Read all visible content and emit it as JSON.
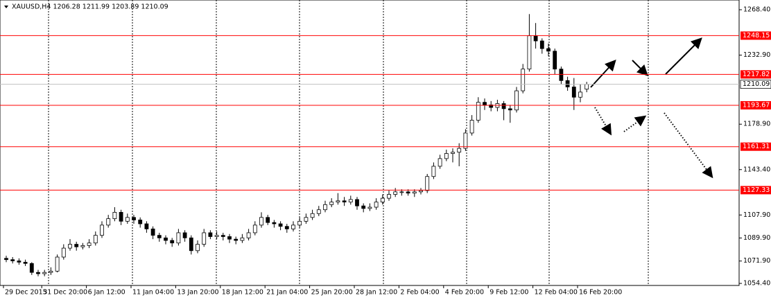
{
  "chart_data": {
    "type": "candlestick",
    "title": "XAUUSD,H4  1206.28 1211.99 1203.89 1210.09",
    "categories": [
      "29 Dec 2015",
      null,
      null,
      null,
      null,
      null,
      "31 Dec 20:00",
      null,
      null,
      null,
      null,
      null,
      null,
      "6 Jan 12:00",
      null,
      null,
      null,
      null,
      null,
      null,
      "11 Jan 04:00",
      null,
      null,
      null,
      null,
      null,
      null,
      "13 Jan 20:00",
      null,
      null,
      null,
      null,
      null,
      null,
      "18 Jan 12:00",
      null,
      null,
      null,
      null,
      null,
      null,
      "21 Jan 04:00",
      null,
      null,
      null,
      null,
      null,
      null,
      "25 Jan 20:00",
      null,
      null,
      null,
      null,
      null,
      null,
      "28 Jan 12:00",
      null,
      null,
      null,
      null,
      null,
      null,
      "2 Feb 04:00",
      null,
      null,
      null,
      null,
      null,
      null,
      "4 Feb 20:00",
      null,
      null,
      null,
      null,
      null,
      null,
      "9 Feb 12:00",
      null,
      null,
      null,
      null,
      null,
      null,
      "12 Feb 04:00",
      null,
      null,
      null,
      null,
      null,
      null,
      "16 Feb 20:00",
      null
    ],
    "open": [
      1074,
      1073,
      1072,
      1071,
      1070,
      1063,
      1062,
      1063,
      1064,
      1075,
      1082,
      1085,
      1083,
      1084,
      1086,
      1092,
      1100,
      1105,
      1110,
      1103,
      1106,
      1104,
      1101,
      1097,
      1092,
      1090,
      1088,
      1086,
      1094,
      1090,
      1080,
      1085,
      1094,
      1091,
      1092,
      1091,
      1089,
      1088,
      1090,
      1094,
      1100,
      1106,
      1102,
      1101,
      1099,
      1097,
      1100,
      1103,
      1106,
      1109,
      1112,
      1116,
      1118,
      1119,
      1118,
      1120,
      1115,
      1113,
      1114,
      1118,
      1121,
      1124,
      1126,
      1126,
      1125,
      1126,
      1127,
      1138,
      1146,
      1152,
      1156,
      1157,
      1160,
      1172,
      1182,
      1196,
      1194,
      1192,
      1195,
      1191,
      1190,
      1205,
      1222,
      1248,
      1244,
      1238,
      1236,
      1222,
      1213,
      1208,
      1200,
      1206.28
    ],
    "high": [
      1076,
      1075,
      1074,
      1073,
      1071,
      1065,
      1065,
      1067,
      1077,
      1085,
      1089,
      1087,
      1086,
      1089,
      1095,
      1103,
      1108,
      1114,
      1112,
      1109,
      1108,
      1106,
      1103,
      1099,
      1094,
      1092,
      1090,
      1097,
      1096,
      1092,
      1088,
      1097,
      1096,
      1095,
      1094,
      1093,
      1091,
      1093,
      1097,
      1103,
      1110,
      1108,
      1104,
      1103,
      1101,
      1103,
      1106,
      1109,
      1112,
      1115,
      1119,
      1121,
      1125,
      1122,
      1123,
      1122,
      1117,
      1117,
      1121,
      1124,
      1127,
      1129,
      1128,
      1128,
      1128,
      1129,
      1140,
      1149,
      1155,
      1159,
      1160,
      1164,
      1175,
      1186,
      1200,
      1199,
      1197,
      1198,
      1197,
      1194,
      1208,
      1226,
      1265,
      1258,
      1246,
      1242,
      1238,
      1224,
      1216,
      1215,
      1210,
      1211.99
    ],
    "low": [
      1071,
      1070,
      1069,
      1068,
      1061,
      1060,
      1060,
      1061,
      1063,
      1073,
      1080,
      1080,
      1081,
      1082,
      1084,
      1090,
      1098,
      1103,
      1100,
      1101,
      1101,
      1098,
      1094,
      1089,
      1087,
      1085,
      1083,
      1084,
      1087,
      1077,
      1078,
      1083,
      1089,
      1089,
      1088,
      1086,
      1085,
      1086,
      1088,
      1092,
      1098,
      1100,
      1098,
      1096,
      1094,
      1095,
      1098,
      1101,
      1104,
      1107,
      1110,
      1114,
      1116,
      1115,
      1116,
      1112,
      1110,
      1111,
      1112,
      1116,
      1119,
      1122,
      1123,
      1123,
      1122,
      1124,
      1125,
      1136,
      1144,
      1150,
      1149,
      1146,
      1158,
      1170,
      1180,
      1190,
      1189,
      1189,
      1182,
      1180,
      1188,
      1203,
      1220,
      1238,
      1234,
      1232,
      1218,
      1210,
      1205,
      1190,
      1196,
      1203.89
    ],
    "close": [
      1073,
      1072,
      1071,
      1070,
      1063,
      1062,
      1063,
      1064,
      1075,
      1082,
      1085,
      1083,
      1084,
      1086,
      1092,
      1100,
      1105,
      1110,
      1103,
      1106,
      1104,
      1101,
      1097,
      1092,
      1090,
      1088,
      1086,
      1094,
      1090,
      1080,
      1085,
      1094,
      1091,
      1092,
      1091,
      1089,
      1088,
      1090,
      1094,
      1100,
      1106,
      1102,
      1101,
      1099,
      1097,
      1100,
      1103,
      1106,
      1109,
      1112,
      1116,
      1118,
      1119,
      1118,
      1120,
      1115,
      1113,
      1114,
      1118,
      1121,
      1124,
      1126,
      1126,
      1125,
      1126,
      1127,
      1138,
      1146,
      1152,
      1156,
      1157,
      1160,
      1172,
      1182,
      1196,
      1194,
      1192,
      1195,
      1191,
      1190,
      1205,
      1222,
      1248,
      1244,
      1238,
      1236,
      1222,
      1213,
      1208,
      1200,
      1204,
      1210.09
    ],
    "bull_color": "#ffffff",
    "bear_color": "#000000",
    "level_color": "#ff0000",
    "levels": [
      1248.15,
      1217.82,
      1193.67,
      1161.31,
      1127.33
    ],
    "current_price": 1210.09,
    "ylim": [
      1052.8,
      1276.0
    ],
    "yticks": [
      {
        "value": 1268.4,
        "label": "1268.40"
      },
      {
        "value": 1232.9,
        "label": "1232.90"
      },
      {
        "value": 1178.9,
        "label": "1178.90"
      },
      {
        "value": 1143.4,
        "label": "1143.40"
      },
      {
        "value": 1107.9,
        "label": "1107.90"
      },
      {
        "value": 1089.9,
        "label": "1089.90"
      },
      {
        "value": 1071.9,
        "label": "1071.90"
      },
      {
        "value": 1054.4,
        "label": "1054.40"
      }
    ]
  }
}
